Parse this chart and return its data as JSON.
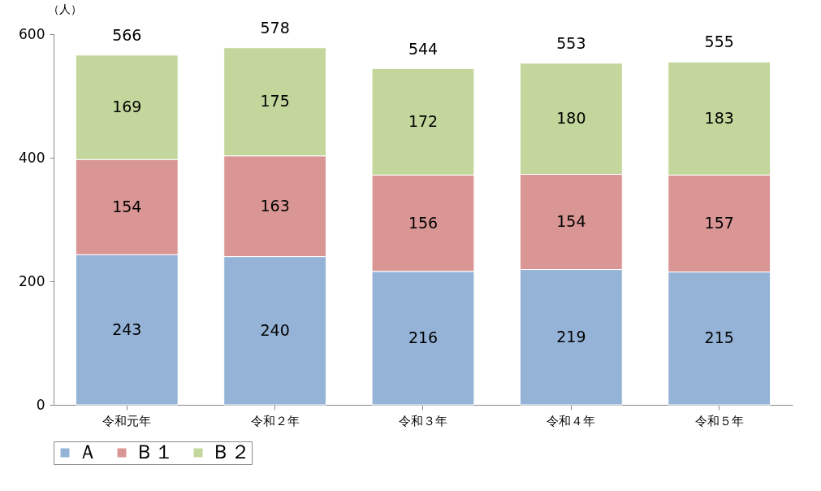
{
  "chart_data": {
    "type": "bar",
    "stacked": true,
    "ylabel": "（人）",
    "categories": [
      "令和元年",
      "令和２年",
      "令和３年",
      "令和４年",
      "令和５年"
    ],
    "series": [
      {
        "name": "Ａ",
        "color": "#95b3d7",
        "values": [
          243,
          240,
          216,
          219,
          215
        ]
      },
      {
        "name": "Ｂ１",
        "color": "#d99694",
        "values": [
          154,
          163,
          156,
          154,
          157
        ]
      },
      {
        "name": "Ｂ２",
        "color": "#c3d69b",
        "values": [
          169,
          175,
          172,
          180,
          183
        ]
      }
    ],
    "totals": [
      "566",
      "578",
      "544",
      "553",
      "555"
    ],
    "data_labels": true,
    "ylim": [
      0,
      600
    ],
    "yticks": [
      0,
      200,
      400,
      600
    ],
    "grid": false,
    "legend": "bottom"
  }
}
